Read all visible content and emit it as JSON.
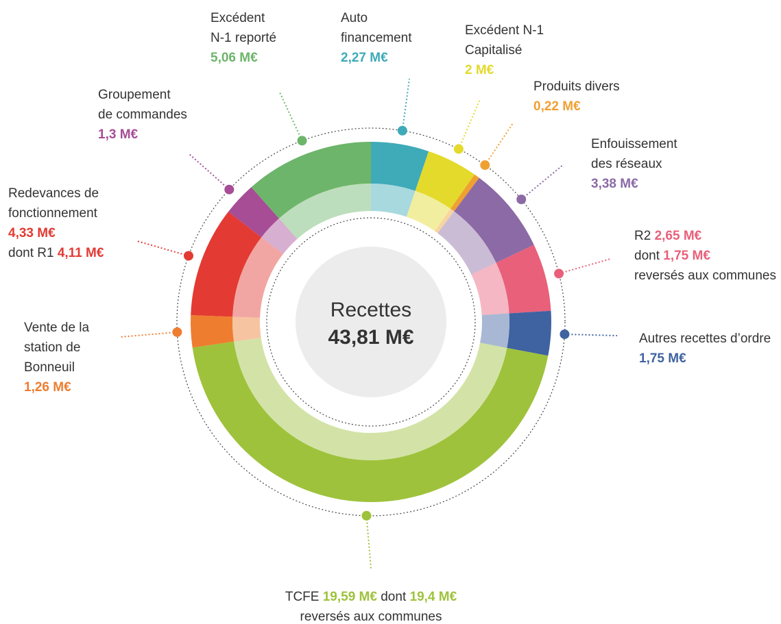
{
  "chart_data": {
    "type": "donut",
    "title": "Recettes",
    "center_label": "43,81 M€",
    "series": [
      {
        "name": "Auto\nfinancement",
        "color": "#3faab8",
        "value": 2.27,
        "value_label": "2,27 M€"
      },
      {
        "name": "Excédent N-1\nCapitalisé",
        "color": "#e3da2c",
        "value": 2,
        "value_label": "2 M€"
      },
      {
        "name": "Produits divers",
        "color": "#f0a030",
        "value": 0.22,
        "value_label": "0,22 M€"
      },
      {
        "name": "Enfouissement\ndes réseaux",
        "color": "#8b6aa5",
        "value": 3.38,
        "value_label": "3,38 M€"
      },
      {
        "name": "R2",
        "color": "#e8607a",
        "value": 2.65,
        "value_label": "2,65 M€",
        "details": [
          {
            "text": "dont",
            "value_label": "1,75 M€"
          },
          {
            "text": "reversés aux communes"
          }
        ]
      },
      {
        "name": "Autres recettes d’ordre",
        "color": "#3f62a0",
        "value": 1.75,
        "value_label": "1,75 M€"
      },
      {
        "name": "TCFE",
        "color": "#9ec23b",
        "value": 19.59,
        "value_label": "19,59 M€",
        "details": [
          {
            "text": "dont",
            "value_label": "19,4 M€"
          },
          {
            "text": "reversés aux communes"
          }
        ]
      },
      {
        "name": "Vente de la\nstation de\nBonneuil",
        "color": "#ee7d30",
        "value": 1.26,
        "value_label": "1,26 M€"
      },
      {
        "name": "Redevances de\nfonctionnement",
        "color": "#e33a33",
        "value": 4.33,
        "value_label": "4,33 M€",
        "details": [
          {
            "text": "dont R1",
            "value_label": "4,11 M€"
          }
        ]
      },
      {
        "name": "Groupement\nde commandes",
        "color": "#a64d96",
        "value": 1.3,
        "value_label": "1,3 M€"
      },
      {
        "name": "Excédent\nN-1 reporté",
        "color": "#6db56a",
        "value": 5.06,
        "value_label": "5,06 M€"
      }
    ]
  }
}
